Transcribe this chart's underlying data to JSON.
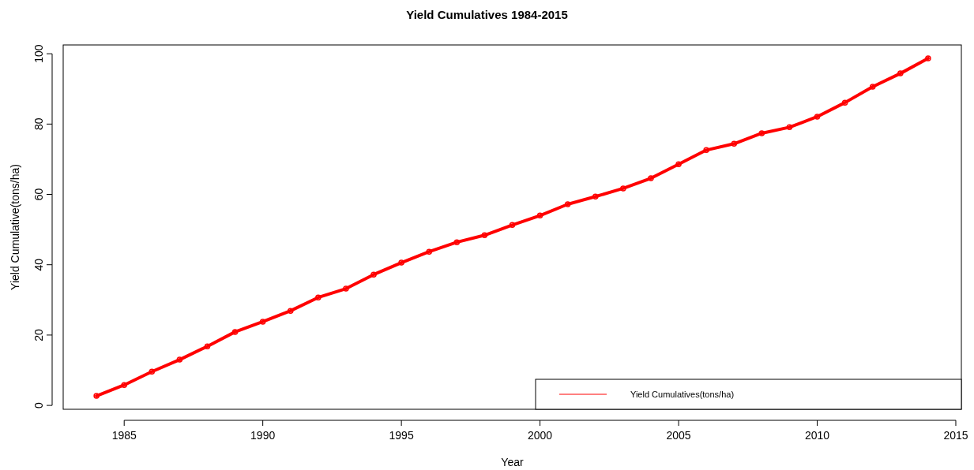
{
  "chart_data": {
    "type": "line",
    "title": "Yield Cumulatives 1984-2015",
    "xlabel": "Year",
    "ylabel": "Yield Cumulative(tons/ha)",
    "x": [
      1984,
      1985,
      1986,
      1987,
      1988,
      1989,
      1990,
      1991,
      1992,
      1993,
      1994,
      1995,
      1996,
      1997,
      1998,
      1999,
      2000,
      2001,
      2002,
      2003,
      2004,
      2005,
      2006,
      2007,
      2008,
      2009,
      2010,
      2011,
      2012,
      2013,
      2014
    ],
    "series": [
      {
        "name": "Yield Cumulatives(tons/ha)",
        "color": "#ff0000",
        "values": [
          2.7,
          5.8,
          9.6,
          13.0,
          16.8,
          20.9,
          23.8,
          26.9,
          30.7,
          33.2,
          37.2,
          40.6,
          43.7,
          46.4,
          48.4,
          51.3,
          54.0,
          57.2,
          59.4,
          61.7,
          64.6,
          68.6,
          72.6,
          74.4,
          77.4,
          79.1,
          82.1,
          86.1,
          90.6,
          94.4,
          98.7
        ]
      }
    ],
    "xlim": [
      1982.8,
      2015.2
    ],
    "xticks": [
      1985,
      1990,
      1995,
      2000,
      2005,
      2010,
      2015
    ],
    "ylim": [
      -1.1,
      102.5
    ],
    "yticks": [
      0,
      20,
      40,
      60,
      80,
      100
    ],
    "grid": false,
    "legend": "bottom right",
    "marker": "circle",
    "line_style": "solid"
  }
}
